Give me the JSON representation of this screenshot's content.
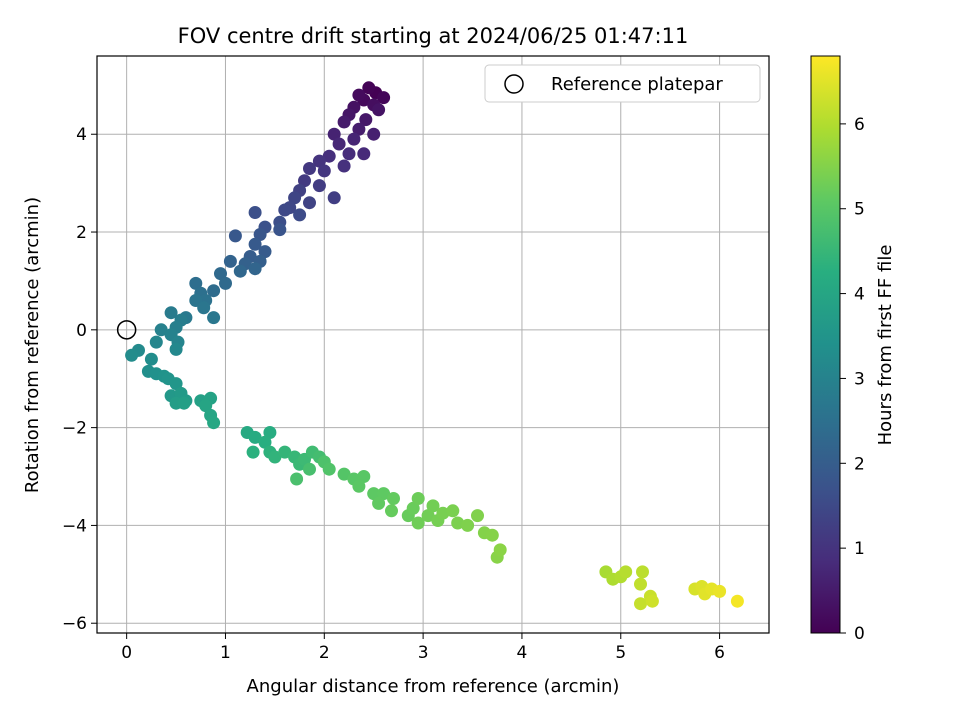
{
  "chart_data": {
    "type": "scatter",
    "title": "FOV centre drift starting at 2024/06/25 01:47:11",
    "xlabel": "Angular distance from reference (arcmin)",
    "ylabel": "Rotation from reference (arcmin)",
    "xlim": [
      -0.3,
      6.5
    ],
    "ylim": [
      -6.2,
      5.6
    ],
    "xticks": [
      0,
      1,
      2,
      3,
      4,
      5,
      6
    ],
    "yticks": [
      -6,
      -4,
      -2,
      0,
      2,
      4
    ],
    "grid": true,
    "legend": {
      "placement": "top-right",
      "entries": [
        "Reference platepar"
      ]
    },
    "reference_point": {
      "label": "Reference platepar",
      "x": 0,
      "y": 0,
      "marker": "hollow-circle"
    },
    "colorbar": {
      "label": "Hours from first FF file",
      "colormap": "viridis",
      "range": [
        0,
        6.8
      ],
      "ticks": [
        0,
        1,
        2,
        3,
        4,
        5,
        6
      ]
    },
    "series": [
      {
        "colored_by": "hours",
        "points": [
          [
            2.52,
            4.85,
            0.0
          ],
          [
            2.45,
            4.95,
            0.05
          ],
          [
            2.6,
            4.75,
            0.1
          ],
          [
            2.4,
            4.7,
            0.15
          ],
          [
            2.35,
            4.8,
            0.2
          ],
          [
            2.5,
            4.6,
            0.25
          ],
          [
            2.3,
            4.55,
            0.3
          ],
          [
            2.55,
            4.5,
            0.35
          ],
          [
            2.25,
            4.4,
            0.4
          ],
          [
            2.42,
            4.3,
            0.45
          ],
          [
            2.2,
            4.25,
            0.5
          ],
          [
            2.35,
            4.1,
            0.55
          ],
          [
            2.5,
            4.0,
            0.6
          ],
          [
            2.1,
            4.0,
            0.65
          ],
          [
            2.3,
            3.9,
            0.7
          ],
          [
            2.15,
            3.8,
            0.75
          ],
          [
            2.4,
            3.6,
            0.8
          ],
          [
            2.25,
            3.6,
            0.85
          ],
          [
            2.05,
            3.55,
            0.9
          ],
          [
            2.2,
            3.35,
            0.95
          ],
          [
            1.95,
            3.45,
            1.0
          ],
          [
            2.0,
            3.25,
            1.05
          ],
          [
            1.85,
            3.3,
            1.1
          ],
          [
            1.8,
            3.05,
            1.15
          ],
          [
            1.95,
            2.95,
            1.2
          ],
          [
            2.1,
            2.7,
            1.25
          ],
          [
            1.75,
            2.85,
            1.3
          ],
          [
            1.85,
            2.6,
            1.35
          ],
          [
            1.7,
            2.7,
            1.4
          ],
          [
            1.65,
            2.5,
            1.45
          ],
          [
            1.6,
            2.45,
            1.5
          ],
          [
            1.75,
            2.35,
            1.55
          ],
          [
            1.55,
            2.2,
            1.6
          ],
          [
            1.3,
            2.4,
            1.65
          ],
          [
            1.4,
            2.1,
            1.7
          ],
          [
            1.55,
            2.05,
            1.75
          ],
          [
            1.35,
            1.95,
            1.8
          ],
          [
            1.1,
            1.92,
            1.85
          ],
          [
            1.3,
            1.75,
            1.9
          ],
          [
            1.4,
            1.6,
            1.95
          ],
          [
            1.25,
            1.5,
            2.0
          ],
          [
            1.35,
            1.4,
            2.05
          ],
          [
            1.2,
            1.35,
            2.1
          ],
          [
            1.05,
            1.4,
            2.15
          ],
          [
            1.3,
            1.25,
            2.2
          ],
          [
            1.15,
            1.2,
            2.25
          ],
          [
            0.95,
            1.15,
            2.3
          ],
          [
            1.0,
            0.95,
            2.35
          ],
          [
            0.88,
            0.8,
            2.4
          ],
          [
            0.7,
            0.95,
            2.45
          ],
          [
            0.75,
            0.75,
            2.5
          ],
          [
            0.8,
            0.6,
            2.55
          ],
          [
            0.7,
            0.6,
            2.6
          ],
          [
            0.78,
            0.45,
            2.65
          ],
          [
            0.88,
            0.25,
            2.7
          ],
          [
            0.6,
            0.25,
            2.75
          ],
          [
            0.45,
            0.35,
            2.8
          ],
          [
            0.55,
            0.2,
            2.85
          ],
          [
            0.5,
            0.05,
            2.9
          ],
          [
            0.35,
            0.0,
            2.95
          ],
          [
            0.45,
            -0.1,
            3.0
          ],
          [
            0.52,
            -0.25,
            3.05
          ],
          [
            0.3,
            -0.25,
            3.1
          ],
          [
            0.5,
            -0.4,
            3.15
          ],
          [
            0.12,
            -0.42,
            3.2
          ],
          [
            0.05,
            -0.52,
            3.25
          ],
          [
            0.25,
            -0.6,
            3.3
          ],
          [
            0.22,
            -0.85,
            3.35
          ],
          [
            0.3,
            -0.9,
            3.4
          ],
          [
            0.38,
            -0.95,
            3.45
          ],
          [
            0.42,
            -1.0,
            3.5
          ],
          [
            0.5,
            -1.1,
            3.55
          ],
          [
            0.45,
            -1.35,
            3.6
          ],
          [
            0.55,
            -1.3,
            3.65
          ],
          [
            0.6,
            -1.45,
            3.7
          ],
          [
            0.5,
            -1.5,
            3.75
          ],
          [
            0.58,
            -1.5,
            3.8
          ],
          [
            0.75,
            -1.45,
            3.85
          ],
          [
            0.85,
            -1.4,
            3.9
          ],
          [
            0.8,
            -1.55,
            3.95
          ],
          [
            0.85,
            -1.75,
            4.0
          ],
          [
            0.88,
            -1.9,
            4.05
          ],
          [
            1.22,
            -2.1,
            4.1
          ],
          [
            1.3,
            -2.2,
            4.15
          ],
          [
            1.45,
            -2.1,
            4.2
          ],
          [
            1.4,
            -2.3,
            4.25
          ],
          [
            1.28,
            -2.5,
            4.3
          ],
          [
            1.45,
            -2.5,
            4.35
          ],
          [
            1.5,
            -2.6,
            4.4
          ],
          [
            1.6,
            -2.5,
            4.45
          ],
          [
            1.7,
            -2.6,
            4.5
          ],
          [
            1.75,
            -2.75,
            4.55
          ],
          [
            1.8,
            -2.65,
            4.6
          ],
          [
            1.88,
            -2.5,
            4.65
          ],
          [
            1.95,
            -2.6,
            4.7
          ],
          [
            1.85,
            -2.85,
            4.75
          ],
          [
            1.72,
            -3.05,
            4.8
          ],
          [
            2.0,
            -2.7,
            4.85
          ],
          [
            2.05,
            -2.85,
            4.9
          ],
          [
            2.2,
            -2.95,
            4.95
          ],
          [
            2.3,
            -3.05,
            5.0
          ],
          [
            2.4,
            -3.0,
            5.02
          ],
          [
            2.35,
            -3.2,
            5.05
          ],
          [
            2.5,
            -3.35,
            5.08
          ],
          [
            2.6,
            -3.35,
            5.1
          ],
          [
            2.55,
            -3.55,
            5.12
          ],
          [
            2.7,
            -3.45,
            5.15
          ],
          [
            2.68,
            -3.7,
            5.18
          ],
          [
            2.85,
            -3.8,
            5.2
          ],
          [
            2.9,
            -3.65,
            5.22
          ],
          [
            2.95,
            -3.45,
            5.25
          ],
          [
            2.95,
            -3.95,
            5.28
          ],
          [
            3.05,
            -3.8,
            5.3
          ],
          [
            3.1,
            -3.6,
            5.32
          ],
          [
            3.15,
            -3.9,
            5.35
          ],
          [
            3.2,
            -3.75,
            5.38
          ],
          [
            3.3,
            -3.7,
            5.4
          ],
          [
            3.35,
            -3.95,
            5.42
          ],
          [
            3.45,
            -4.0,
            5.45
          ],
          [
            3.55,
            -3.8,
            5.48
          ],
          [
            3.62,
            -4.15,
            5.5
          ],
          [
            3.7,
            -4.2,
            5.52
          ],
          [
            3.75,
            -4.65,
            5.55
          ],
          [
            3.78,
            -4.5,
            5.58
          ],
          [
            4.85,
            -4.95,
            5.9
          ],
          [
            4.92,
            -5.1,
            5.95
          ],
          [
            5.0,
            -5.05,
            6.0
          ],
          [
            5.05,
            -4.95,
            6.05
          ],
          [
            5.22,
            -4.95,
            6.1
          ],
          [
            5.2,
            -5.2,
            6.15
          ],
          [
            5.2,
            -5.6,
            6.2
          ],
          [
            5.3,
            -5.45,
            6.25
          ],
          [
            5.32,
            -5.55,
            6.3
          ],
          [
            5.75,
            -5.3,
            6.4
          ],
          [
            5.82,
            -5.25,
            6.45
          ],
          [
            5.85,
            -5.4,
            6.5
          ],
          [
            5.92,
            -5.3,
            6.55
          ],
          [
            6.0,
            -5.35,
            6.6
          ],
          [
            6.18,
            -5.55,
            6.7
          ]
        ]
      }
    ]
  }
}
